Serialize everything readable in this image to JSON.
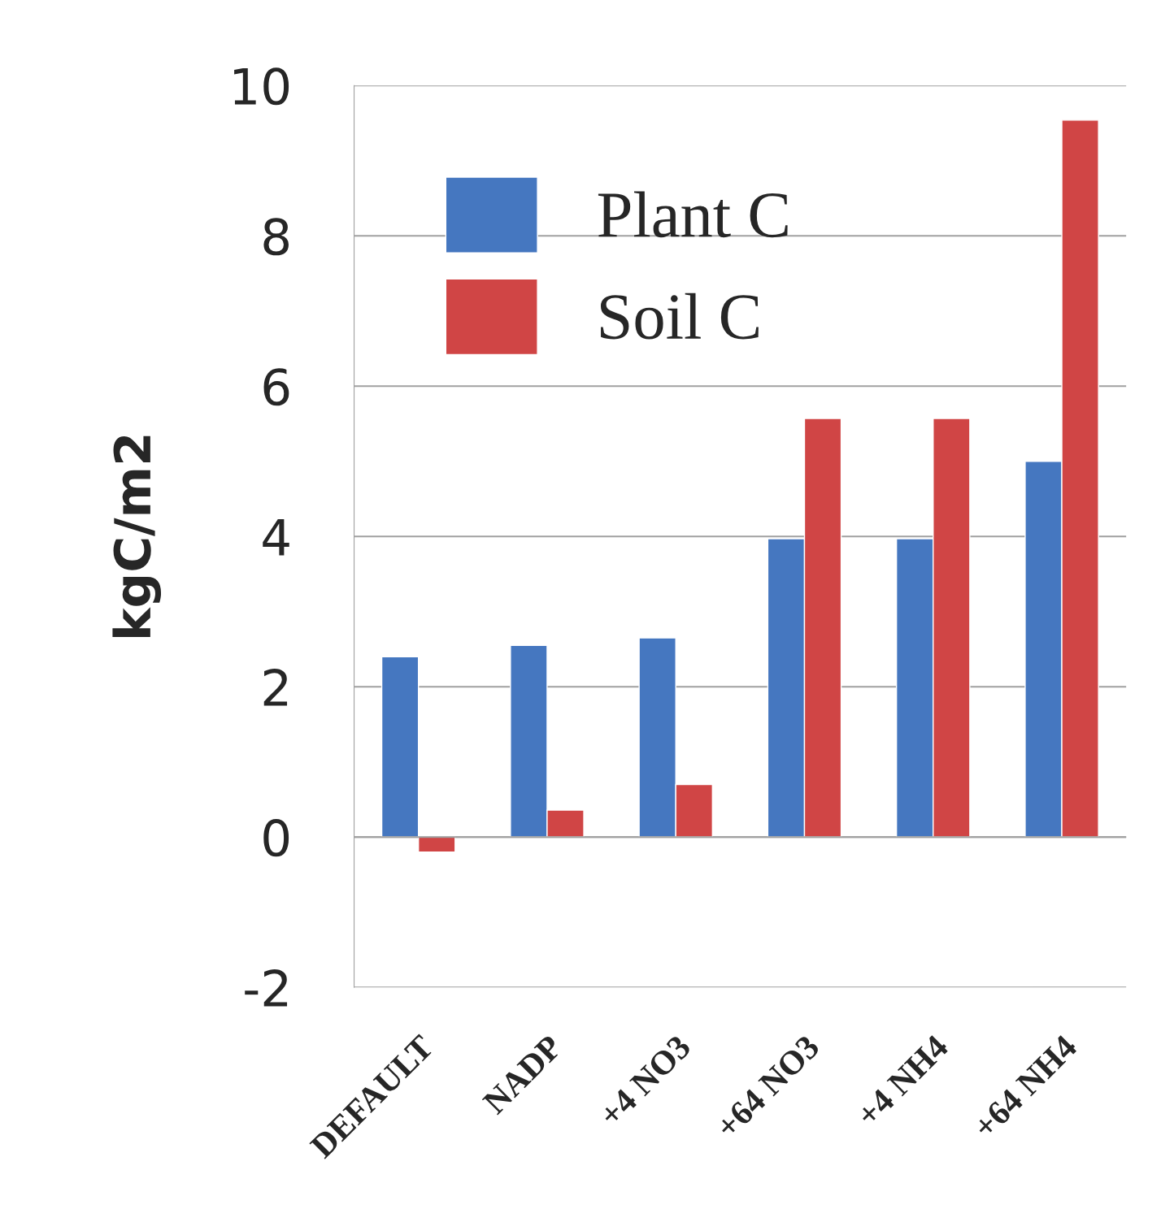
{
  "chart_data": {
    "type": "bar",
    "ylabel": "kgC/m2",
    "categories": [
      "DEFAULT",
      "NADP",
      "+4 NO3",
      "+64 NO3",
      "+4 NH4",
      "+64 NH4"
    ],
    "series": [
      {
        "name": "Plant C",
        "color": "#4577c0",
        "values": [
          2.4,
          2.55,
          2.65,
          3.97,
          3.97,
          5.0
        ]
      },
      {
        "name": "Soil C",
        "color": "#d04545",
        "values": [
          -0.2,
          0.36,
          0.7,
          5.57,
          5.57,
          9.54
        ]
      }
    ],
    "ylim": [
      -2,
      10
    ],
    "yticks": [
      -2,
      0,
      2,
      4,
      6,
      8,
      10
    ],
    "grid": "y",
    "legend": "top left"
  }
}
